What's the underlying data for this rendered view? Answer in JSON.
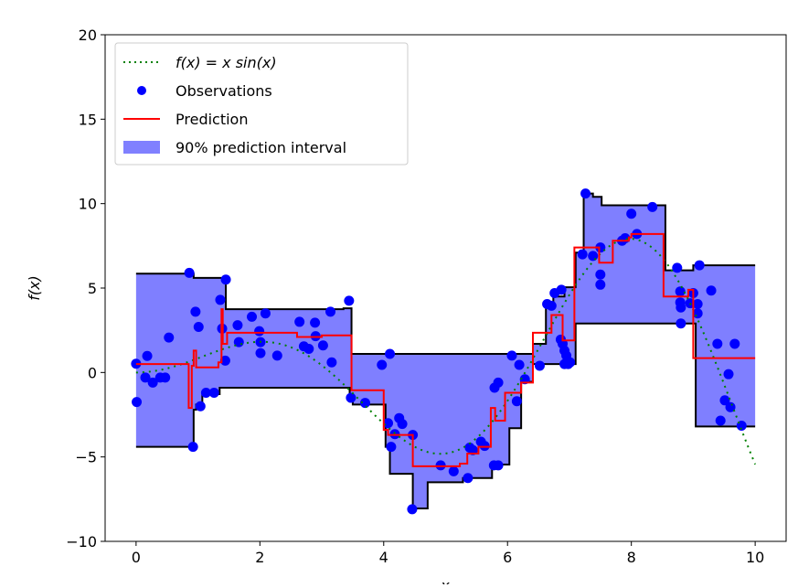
{
  "chart_data": {
    "type": "line",
    "title": "",
    "xlabel": "x",
    "ylabel": "f(x)",
    "xlim": [
      -0.5,
      10.5
    ],
    "ylim": [
      -10,
      20
    ],
    "x_ticks": [
      0,
      2,
      4,
      6,
      8,
      10
    ],
    "x_tick_labels": [
      "0",
      "2",
      "4",
      "6",
      "8",
      "10"
    ],
    "y_ticks": [
      -10,
      -5,
      0,
      5,
      10,
      15,
      20
    ],
    "y_tick_labels": [
      "−10",
      "−5",
      "0",
      "5",
      "10",
      "15",
      "20"
    ],
    "grid": false,
    "legend": {
      "placement": "top-left",
      "entries": [
        {
          "label": "f(x) = x sin(x)",
          "style": "dotted-line",
          "color": "#008000"
        },
        {
          "label": "Observations",
          "style": "marker",
          "color": "#0000ff"
        },
        {
          "label": "Prediction",
          "style": "line",
          "color": "#ff0000"
        },
        {
          "label": "90% prediction interval",
          "style": "patch",
          "color": "#8080ff"
        }
      ]
    },
    "true_function": {
      "expression": "x*sin(x)",
      "x_range": [
        0,
        10
      ],
      "color": "#008000"
    },
    "upper_bound_steps": [
      [
        0,
        5.85
      ],
      [
        0.93,
        5.6
      ],
      [
        1.45,
        3.75
      ],
      [
        3.35,
        3.8
      ],
      [
        3.48,
        1.1
      ],
      [
        6.22,
        1.1
      ],
      [
        6.41,
        1.7
      ],
      [
        6.62,
        4.0
      ],
      [
        6.74,
        4.5
      ],
      [
        6.92,
        5.05
      ],
      [
        7.1,
        7.1
      ],
      [
        7.23,
        10.6
      ],
      [
        7.38,
        10.4
      ],
      [
        7.52,
        9.9
      ],
      [
        8.55,
        6.05
      ],
      [
        9.0,
        6.35
      ],
      [
        10,
        6.35
      ]
    ],
    "lower_bound_steps": [
      [
        0,
        -4.4
      ],
      [
        0.93,
        -2.2
      ],
      [
        0.97,
        -1.9
      ],
      [
        1.07,
        -1.28
      ],
      [
        1.35,
        -0.9
      ],
      [
        3.45,
        -1.27
      ],
      [
        3.5,
        -1.9
      ],
      [
        4.03,
        -4.4
      ],
      [
        4.1,
        -6.0
      ],
      [
        4.47,
        -8.05
      ],
      [
        4.71,
        -6.5
      ],
      [
        5.28,
        -6.25
      ],
      [
        5.75,
        -5.45
      ],
      [
        6.03,
        -3.3
      ],
      [
        6.22,
        -0.55
      ],
      [
        6.41,
        0.5
      ],
      [
        7.1,
        2.9
      ],
      [
        9.04,
        -3.2
      ],
      [
        10,
        -3.2
      ]
    ],
    "prediction_steps": [
      [
        0,
        0.5
      ],
      [
        0.85,
        -2.1
      ],
      [
        0.9,
        0.4
      ],
      [
        0.93,
        1.3
      ],
      [
        0.97,
        0.3
      ],
      [
        1.33,
        0.6
      ],
      [
        1.38,
        3.75
      ],
      [
        1.4,
        1.7
      ],
      [
        1.47,
        2.35
      ],
      [
        2.6,
        2.1
      ],
      [
        3.0,
        2.2
      ],
      [
        3.48,
        -1.05
      ],
      [
        4.0,
        -3.4
      ],
      [
        4.07,
        -3.7
      ],
      [
        4.47,
        -5.55
      ],
      [
        5.23,
        -5.4
      ],
      [
        5.35,
        -4.8
      ],
      [
        5.53,
        -4.4
      ],
      [
        5.73,
        -2.1
      ],
      [
        5.8,
        -2.85
      ],
      [
        5.96,
        -1.2
      ],
      [
        6.22,
        -0.6
      ],
      [
        6.41,
        2.35
      ],
      [
        6.71,
        3.4
      ],
      [
        6.89,
        1.9
      ],
      [
        7.08,
        7.4
      ],
      [
        7.48,
        6.5
      ],
      [
        7.7,
        7.8
      ],
      [
        7.96,
        8.0
      ],
      [
        8.0,
        8.2
      ],
      [
        8.52,
        4.5
      ],
      [
        8.92,
        4.9
      ],
      [
        9.0,
        0.85
      ],
      [
        10,
        0.85
      ]
    ],
    "observations": [
      [
        0,
        0.52
      ],
      [
        0.01,
        -1.75
      ],
      [
        0.18,
        0.98
      ],
      [
        0.15,
        -0.3
      ],
      [
        0.27,
        -0.6
      ],
      [
        0.39,
        -0.3
      ],
      [
        0.47,
        -0.3
      ],
      [
        0.53,
        2.07
      ],
      [
        0.86,
        5.9
      ],
      [
        0.92,
        -4.4
      ],
      [
        0.96,
        3.6
      ],
      [
        1.01,
        2.7
      ],
      [
        1.04,
        -2.0
      ],
      [
        1.13,
        -1.2
      ],
      [
        1.26,
        -1.2
      ],
      [
        1.36,
        4.3
      ],
      [
        1.39,
        2.6
      ],
      [
        1.45,
        5.5
      ],
      [
        1.44,
        0.7
      ],
      [
        1.64,
        2.8
      ],
      [
        1.66,
        1.8
      ],
      [
        1.87,
        3.3
      ],
      [
        1.99,
        2.45
      ],
      [
        2.01,
        1.15
      ],
      [
        2.01,
        1.8
      ],
      [
        2.09,
        3.5
      ],
      [
        2.28,
        1.0
      ],
      [
        2.64,
        3.0
      ],
      [
        2.71,
        1.55
      ],
      [
        2.79,
        1.4
      ],
      [
        2.89,
        2.95
      ],
      [
        2.9,
        2.15
      ],
      [
        3.02,
        1.6
      ],
      [
        3.14,
        3.6
      ],
      [
        3.16,
        0.6
      ],
      [
        3.44,
        4.25
      ],
      [
        3.47,
        -1.5
      ],
      [
        3.7,
        -1.8
      ],
      [
        3.97,
        0.45
      ],
      [
        4.1,
        1.1
      ],
      [
        4.07,
        -3.0
      ],
      [
        4.12,
        -4.4
      ],
      [
        4.18,
        -3.65
      ],
      [
        4.25,
        -2.7
      ],
      [
        4.3,
        -3.05
      ],
      [
        4.47,
        -3.7
      ],
      [
        4.46,
        -8.1
      ],
      [
        4.92,
        -5.5
      ],
      [
        5.13,
        -5.85
      ],
      [
        5.36,
        -6.25
      ],
      [
        5.39,
        -4.45
      ],
      [
        5.44,
        -4.6
      ],
      [
        5.57,
        -4.1
      ],
      [
        5.63,
        -4.35
      ],
      [
        5.78,
        -5.5
      ],
      [
        5.85,
        -5.5
      ],
      [
        5.79,
        -0.9
      ],
      [
        5.85,
        -0.6
      ],
      [
        6.07,
        1.0
      ],
      [
        6.15,
        -1.7
      ],
      [
        6.19,
        0.45
      ],
      [
        6.28,
        -0.4
      ],
      [
        6.52,
        0.4
      ],
      [
        6.64,
        4.05
      ],
      [
        6.71,
        3.95
      ],
      [
        6.76,
        4.7
      ],
      [
        6.87,
        4.9
      ],
      [
        6.86,
        1.95
      ],
      [
        6.89,
        1.7
      ],
      [
        6.92,
        1.3
      ],
      [
        6.95,
        1.0
      ],
      [
        6.92,
        0.5
      ],
      [
        6.98,
        0.5
      ],
      [
        7.01,
        0.6
      ],
      [
        7.21,
        7.0
      ],
      [
        7.26,
        10.6
      ],
      [
        7.38,
        6.9
      ],
      [
        7.5,
        7.4
      ],
      [
        7.5,
        5.8
      ],
      [
        7.5,
        5.2
      ],
      [
        7.85,
        7.8
      ],
      [
        7.9,
        7.95
      ],
      [
        8.0,
        9.4
      ],
      [
        8.09,
        8.2
      ],
      [
        8.34,
        9.8
      ],
      [
        8.74,
        6.2
      ],
      [
        8.79,
        4.8
      ],
      [
        8.79,
        4.15
      ],
      [
        8.8,
        2.9
      ],
      [
        8.8,
        3.85
      ],
      [
        8.95,
        4.1
      ],
      [
        9.0,
        4.7
      ],
      [
        9.07,
        4.05
      ],
      [
        9.07,
        3.5
      ],
      [
        9.1,
        6.35
      ],
      [
        9.29,
        4.85
      ],
      [
        9.39,
        1.7
      ],
      [
        9.44,
        -2.85
      ],
      [
        9.51,
        -1.65
      ],
      [
        9.57,
        -0.1
      ],
      [
        9.6,
        -2.05
      ],
      [
        9.67,
        1.7
      ],
      [
        9.78,
        -3.15
      ]
    ]
  }
}
